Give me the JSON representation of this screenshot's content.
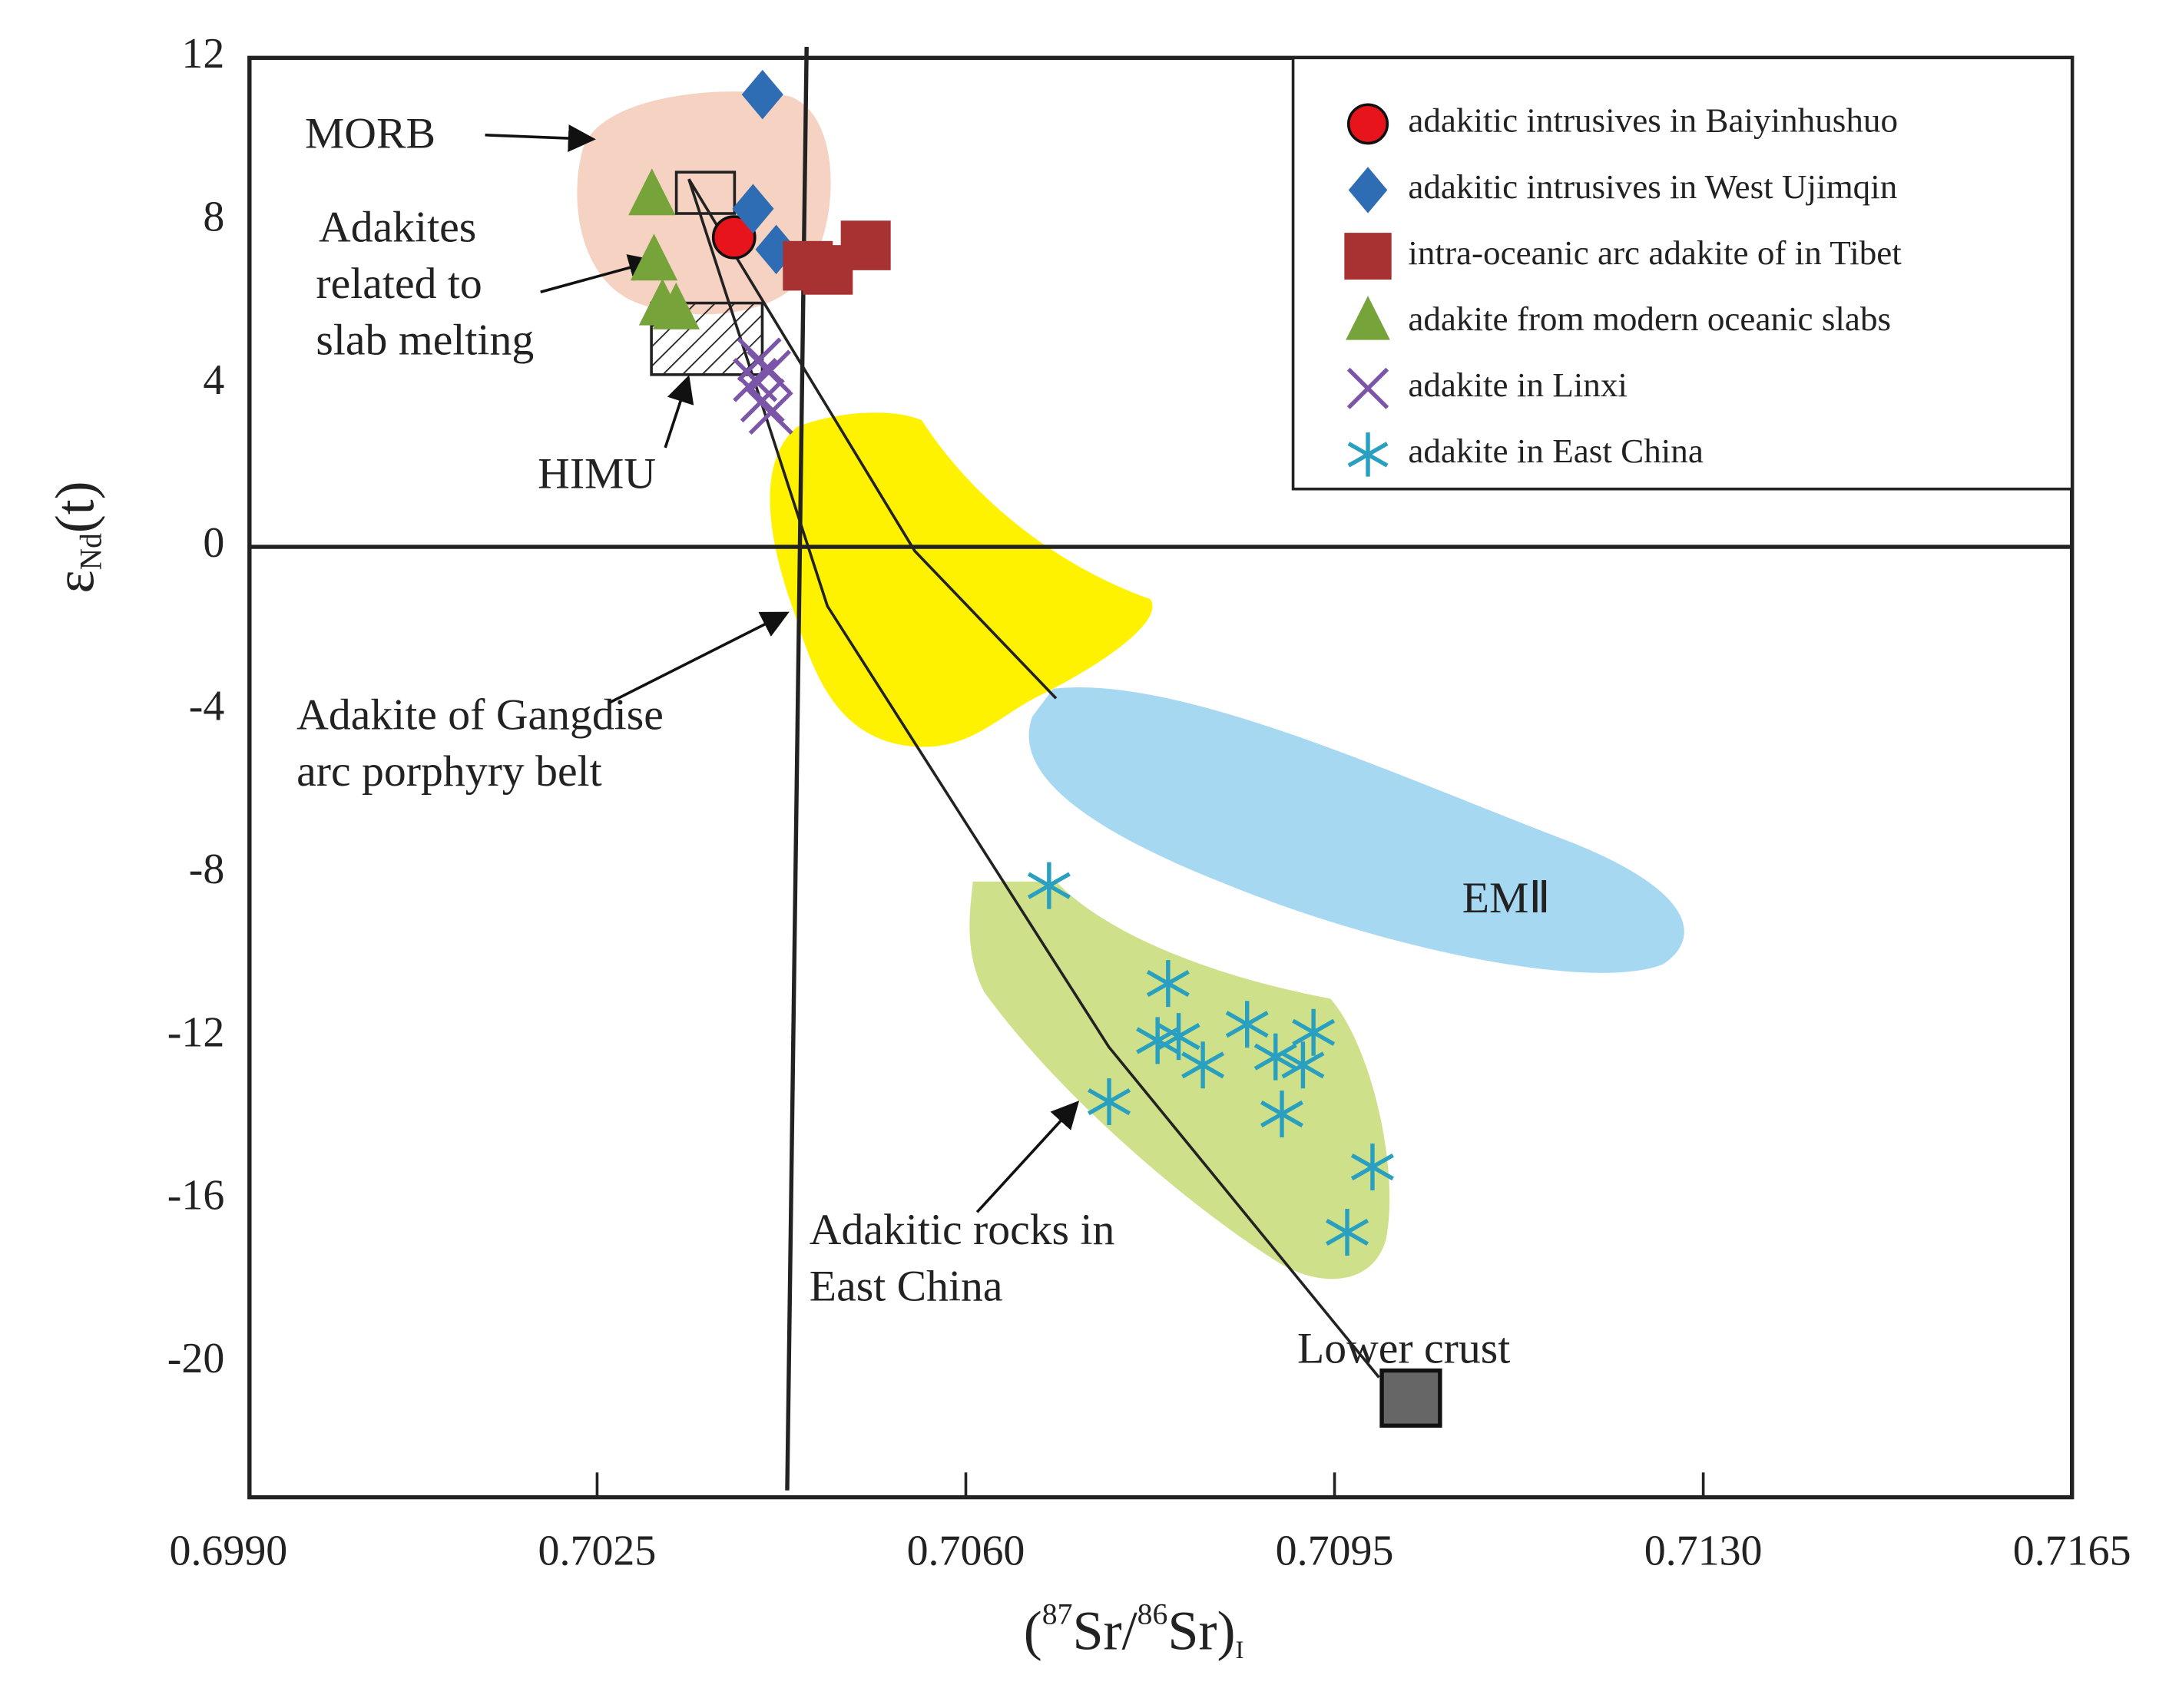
{
  "chart_data": {
    "type": "scatter",
    "xlabel": [
      "(",
      "87",
      "Sr/",
      "86",
      "Sr)",
      "I"
    ],
    "ylabel": [
      "ε",
      "Nd",
      "(t)"
    ],
    "xlim": [
      0.6992,
      0.7165
    ],
    "ylim": [
      -23.3,
      12
    ],
    "xticks": [
      {
        "value": 0.699,
        "label": "0.6990"
      },
      0.7025,
      {
        "value": 0.706,
        "label": "0.7060"
      },
      0.7095,
      {
        "value": 0.713,
        "label": "0.7130"
      },
      0.7165
    ],
    "yticks": [
      12,
      8,
      4,
      0,
      -4,
      -8,
      -12,
      -16,
      -20
    ],
    "annotations": [
      "MORB",
      "Adakites",
      "related to",
      "slab melting",
      "HIMU",
      "Adakite of Gangdise",
      "arc porphyry belt",
      "EMⅡ",
      "Adakitic rocks in",
      "East China",
      "Lower crust"
    ],
    "legend": "upper right",
    "series": [
      {
        "name": "adakitic intrusives in Baiyinhushuo",
        "color": "#e8141b",
        "marker": "circle",
        "x": [
          0.7038
        ],
        "values": [
          7.6
        ]
      },
      {
        "name": "adakitic intrusives in West Ujimqin",
        "color": "#2e6db4",
        "marker": "diamond",
        "x": [
          0.70407,
          0.70398,
          0.7042
        ],
        "values": [
          11.1,
          8.3,
          7.3
        ]
      },
      {
        "name": "intra-oceanic arc adakite of  in Tibet",
        "color": "#a83232",
        "marker": "square",
        "x": [
          0.7045,
          0.70469,
          0.70505
        ],
        "values": [
          6.9,
          6.8,
          7.4
        ]
      },
      {
        "name": "adakite from modern oceanic slabs",
        "color": "#77a33b",
        "marker": "triangle",
        "x": [
          0.70302,
          0.70304,
          0.70312,
          0.70325
        ],
        "values": [
          8.6,
          7.0,
          5.9,
          5.8
        ]
      },
      {
        "name": "adakite in Linxi",
        "color": "#7b55a8",
        "marker": "x",
        "x": [
          0.70404,
          0.704,
          0.70413,
          0.70407,
          0.70415
        ],
        "values": [
          4.6,
          4.1,
          4.3,
          3.6,
          3.3
        ]
      },
      {
        "name": "adakite in East China",
        "color": "#2aa0c0",
        "marker": "asterisk",
        "x": [
          0.70679,
          0.70792,
          0.70782,
          0.70802,
          0.70825,
          0.70736,
          0.70867,
          0.70894,
          0.7092,
          0.7093,
          0.709,
          0.70986,
          0.70962
        ],
        "values": [
          -8.3,
          -10.7,
          -12.1,
          -12.0,
          -12.7,
          -13.6,
          -11.7,
          -12.5,
          -12.7,
          -11.9,
          -13.9,
          -15.2,
          -16.8
        ]
      }
    ]
  }
}
